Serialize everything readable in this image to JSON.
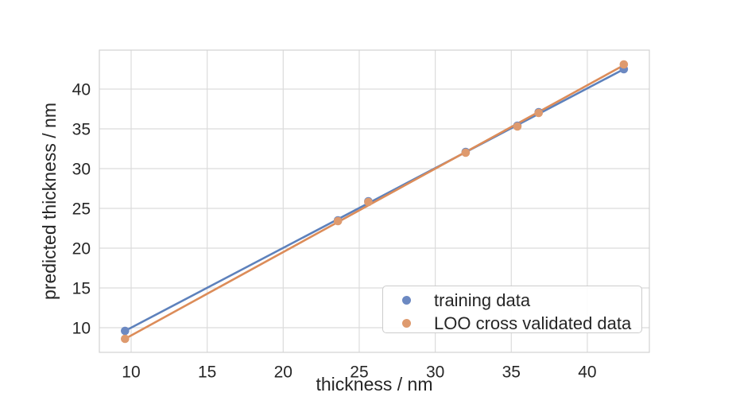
{
  "chart_data": {
    "type": "scatter",
    "title": "",
    "xlabel": "thickness / nm",
    "ylabel": "predicted thickness / nm",
    "xlim": [
      7.91,
      44.08
    ],
    "ylim": [
      6.9,
      44.9
    ],
    "xticks": [
      10,
      15,
      20,
      25,
      30,
      35,
      40
    ],
    "yticks": [
      10,
      15,
      20,
      25,
      30,
      35,
      40
    ],
    "grid": true,
    "legend_position": "lower-right-inside",
    "x": [
      9.6,
      23.6,
      25.6,
      32.0,
      35.4,
      36.8,
      42.4
    ],
    "series": [
      {
        "name": "training data",
        "marker_color": "#6c89c2",
        "line_color": "#5d81bc",
        "y": [
          9.6,
          23.5,
          25.9,
          32.1,
          35.4,
          37.1,
          42.5
        ],
        "fit_line": {
          "x": [
            9.6,
            42.4
          ],
          "y": [
            9.6,
            42.5
          ]
        }
      },
      {
        "name": "LOO cross validated data",
        "marker_color": "#de9a6e",
        "line_color": "#dc8c59",
        "y": [
          8.6,
          23.4,
          25.8,
          32.0,
          35.3,
          37.0,
          43.1
        ],
        "fit_line": {
          "x": [
            9.6,
            42.4
          ],
          "y": [
            8.6,
            43.0
          ]
        }
      }
    ],
    "colors": {
      "grid": "#dcdcdc",
      "plot_border": "#d2d2d2",
      "text": "#262626",
      "background": "#ffffff"
    }
  }
}
